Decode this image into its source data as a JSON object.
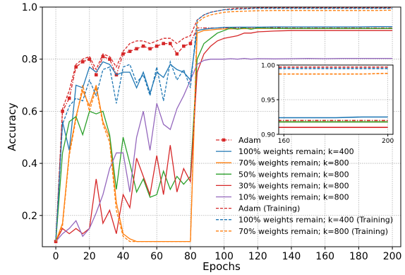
{
  "chart_data": {
    "type": "line",
    "title": "",
    "xlabel": "Epochs",
    "ylabel": "Accuracy",
    "xlim": [
      -8,
      205
    ],
    "ylim": [
      0.08,
      1.0
    ],
    "xticks": [
      0,
      20,
      40,
      60,
      80,
      100,
      120,
      140,
      160,
      180,
      200
    ],
    "yticks": [
      0.2,
      0.4,
      0.6,
      0.8,
      1.0
    ],
    "ytick_labels": [
      "0.2",
      "0.4",
      "0.6",
      "0.8",
      "1.0"
    ],
    "grid": true,
    "legend_position": "lower-right",
    "series": [
      {
        "name": "Adam",
        "color": "#d62728",
        "style": "dashdot",
        "marker": "square",
        "x": [
          0,
          4,
          8,
          12,
          16,
          20,
          24,
          28,
          32,
          36,
          40,
          44,
          48,
          52,
          56,
          60,
          64,
          68,
          72,
          76,
          80,
          84,
          88,
          92,
          96,
          100,
          104,
          108,
          112,
          116,
          120,
          124,
          128,
          132,
          136,
          140,
          144,
          148,
          152,
          156,
          160,
          164,
          168,
          172,
          176,
          180,
          184,
          188,
          192,
          196,
          200
        ],
        "y": [
          0.1,
          0.6,
          0.65,
          0.77,
          0.79,
          0.8,
          0.74,
          0.81,
          0.8,
          0.74,
          0.82,
          0.83,
          0.84,
          0.85,
          0.84,
          0.85,
          0.86,
          0.86,
          0.82,
          0.85,
          0.86,
          0.92,
          0.92,
          0.92,
          0.92,
          0.92,
          0.92,
          0.92,
          0.921,
          0.922,
          0.92,
          0.922,
          0.921,
          0.921,
          0.92,
          0.92,
          0.92,
          0.92,
          0.92,
          0.92,
          0.92,
          0.92,
          0.92,
          0.92,
          0.92,
          0.92,
          0.92,
          0.92,
          0.92,
          0.92,
          0.92
        ]
      },
      {
        "name": "100% weights remain; k=400",
        "color": "#1f77b4",
        "style": "solid",
        "x": [
          0,
          4,
          8,
          12,
          16,
          20,
          24,
          28,
          32,
          36,
          40,
          44,
          48,
          52,
          56,
          60,
          64,
          68,
          72,
          76,
          80,
          84,
          88,
          92,
          96,
          100,
          110,
          120,
          130,
          140,
          150,
          160,
          170,
          180,
          190,
          200
        ],
        "y": [
          0.1,
          0.56,
          0.45,
          0.7,
          0.69,
          0.77,
          0.75,
          0.79,
          0.78,
          0.74,
          0.75,
          0.75,
          0.69,
          0.75,
          0.67,
          0.75,
          0.73,
          0.78,
          0.76,
          0.75,
          0.72,
          0.91,
          0.915,
          0.918,
          0.92,
          0.922,
          0.923,
          0.923,
          0.924,
          0.924,
          0.924,
          0.924,
          0.924,
          0.924,
          0.925,
          0.925
        ]
      },
      {
        "name": "70% weights remain; k=800",
        "color": "#ff7f0e",
        "style": "solid",
        "x": [
          0,
          4,
          8,
          12,
          16,
          20,
          24,
          28,
          32,
          36,
          40,
          44,
          48,
          52,
          56,
          60,
          64,
          68,
          72,
          76,
          80,
          84,
          88,
          92,
          96,
          100,
          110,
          120,
          130,
          140,
          150,
          160,
          170,
          180,
          190,
          200
        ],
        "y": [
          0.1,
          0.17,
          0.44,
          0.58,
          0.68,
          0.62,
          0.7,
          0.56,
          0.5,
          0.25,
          0.13,
          0.11,
          0.1,
          0.1,
          0.1,
          0.1,
          0.1,
          0.1,
          0.1,
          0.1,
          0.1,
          0.9,
          0.91,
          0.912,
          0.915,
          0.916,
          0.917,
          0.918,
          0.918,
          0.918,
          0.918,
          0.918,
          0.918,
          0.918,
          0.918,
          0.918
        ]
      },
      {
        "name": "50% weights remain; k=800",
        "color": "#2ca02c",
        "style": "solid",
        "x": [
          0,
          4,
          8,
          12,
          16,
          20,
          24,
          28,
          32,
          36,
          40,
          44,
          48,
          52,
          56,
          60,
          64,
          68,
          72,
          76,
          80,
          84,
          88,
          92,
          96,
          100,
          104,
          108,
          112,
          116,
          120,
          130,
          140,
          150,
          160,
          170,
          180,
          190,
          200
        ],
        "y": [
          0.1,
          0.44,
          0.56,
          0.58,
          0.51,
          0.6,
          0.59,
          0.6,
          0.51,
          0.3,
          0.5,
          0.4,
          0.29,
          0.34,
          0.27,
          0.28,
          0.37,
          0.3,
          0.35,
          0.32,
          0.35,
          0.8,
          0.86,
          0.88,
          0.9,
          0.91,
          0.92,
          0.915,
          0.92,
          0.915,
          0.92,
          0.918,
          0.918,
          0.918,
          0.918,
          0.918,
          0.918,
          0.918,
          0.918
        ]
      },
      {
        "name": "30% weights remain; k=800",
        "color": "#d62728",
        "style": "solid",
        "x": [
          0,
          4,
          8,
          12,
          16,
          20,
          24,
          28,
          32,
          36,
          40,
          44,
          48,
          52,
          56,
          60,
          64,
          68,
          72,
          76,
          80,
          84,
          88,
          92,
          96,
          100,
          104,
          108,
          112,
          116,
          120,
          130,
          140,
          150,
          160,
          170,
          180,
          190,
          200
        ],
        "y": [
          0.1,
          0.15,
          0.13,
          0.15,
          0.13,
          0.15,
          0.34,
          0.17,
          0.22,
          0.13,
          0.28,
          0.23,
          0.42,
          0.35,
          0.28,
          0.43,
          0.28,
          0.47,
          0.29,
          0.38,
          0.33,
          0.75,
          0.82,
          0.85,
          0.87,
          0.88,
          0.885,
          0.89,
          0.9,
          0.9,
          0.905,
          0.908,
          0.91,
          0.91,
          0.91,
          0.91,
          0.91,
          0.91,
          0.91
        ]
      },
      {
        "name": "10% weights remain; k=800",
        "color": "#9467bd",
        "style": "solid",
        "x": [
          0,
          4,
          8,
          12,
          16,
          20,
          24,
          28,
          32,
          36,
          40,
          44,
          48,
          52,
          56,
          60,
          64,
          68,
          72,
          76,
          80,
          84,
          88,
          92,
          96,
          100,
          104,
          108,
          112,
          116,
          120,
          130,
          140,
          150,
          160,
          170,
          180,
          190,
          200
        ],
        "y": [
          0.1,
          0.13,
          0.15,
          0.18,
          0.12,
          0.15,
          0.21,
          0.28,
          0.38,
          0.44,
          0.44,
          0.29,
          0.5,
          0.6,
          0.45,
          0.63,
          0.55,
          0.53,
          0.61,
          0.66,
          0.72,
          0.78,
          0.795,
          0.8,
          0.8,
          0.8,
          0.802,
          0.8,
          0.803,
          0.8,
          0.802,
          0.801,
          0.802,
          0.803,
          0.802,
          0.803,
          0.803,
          0.803,
          0.803
        ]
      },
      {
        "name": "Adam (Training)",
        "color": "#d62728",
        "style": "dashed",
        "x": [
          0,
          4,
          8,
          12,
          16,
          20,
          24,
          28,
          32,
          36,
          40,
          44,
          48,
          52,
          56,
          60,
          64,
          68,
          72,
          76,
          80,
          84,
          88,
          92,
          96,
          100,
          104,
          108,
          112,
          116,
          120,
          130,
          140,
          150,
          160,
          170,
          180,
          190,
          200
        ],
        "y": [
          0.1,
          0.61,
          0.68,
          0.78,
          0.8,
          0.81,
          0.76,
          0.82,
          0.81,
          0.77,
          0.83,
          0.86,
          0.87,
          0.87,
          0.86,
          0.87,
          0.88,
          0.88,
          0.86,
          0.88,
          0.89,
          0.95,
          0.97,
          0.98,
          0.985,
          0.99,
          0.993,
          0.995,
          0.995,
          0.996,
          0.997,
          0.997,
          0.997,
          0.997,
          0.997,
          0.997,
          0.997,
          0.997,
          0.997
        ]
      },
      {
        "name": "100% weights remain; k=400 (Training)",
        "color": "#1f77b4",
        "style": "dashed",
        "x": [
          0,
          4,
          8,
          12,
          16,
          20,
          24,
          28,
          32,
          36,
          40,
          44,
          48,
          52,
          56,
          60,
          64,
          68,
          72,
          76,
          80,
          84,
          88,
          92,
          96,
          100,
          104,
          108,
          112,
          116,
          120,
          130,
          140,
          150,
          160,
          170,
          180,
          190,
          200
        ],
        "y": [
          0.1,
          0.55,
          0.62,
          0.65,
          0.64,
          0.72,
          0.66,
          0.76,
          0.77,
          0.63,
          0.77,
          0.78,
          0.71,
          0.74,
          0.66,
          0.77,
          0.64,
          0.79,
          0.72,
          0.76,
          0.69,
          0.95,
          0.97,
          0.98,
          0.985,
          0.99,
          0.99,
          0.992,
          0.993,
          0.994,
          0.995,
          0.995,
          0.995,
          0.995,
          0.995,
          0.995,
          0.995,
          0.995,
          0.995
        ]
      },
      {
        "name": "70% weights remain; k=800 (Training)",
        "color": "#ff7f0e",
        "style": "dashed",
        "x": [
          0,
          4,
          8,
          12,
          16,
          20,
          24,
          28,
          32,
          36,
          40,
          44,
          48,
          52,
          56,
          60,
          64,
          68,
          72,
          76,
          80,
          84,
          88,
          92,
          96,
          100,
          104,
          108,
          112,
          116,
          120,
          130,
          140,
          150,
          160,
          170,
          180,
          190,
          200
        ],
        "y": [
          0.1,
          0.16,
          0.43,
          0.57,
          0.7,
          0.6,
          0.69,
          0.55,
          0.48,
          0.22,
          0.12,
          0.1,
          0.1,
          0.1,
          0.1,
          0.1,
          0.1,
          0.1,
          0.1,
          0.1,
          0.1,
          0.94,
          0.96,
          0.97,
          0.975,
          0.98,
          0.982,
          0.983,
          0.984,
          0.985,
          0.986,
          0.987,
          0.987,
          0.987,
          0.987,
          0.987,
          0.987,
          0.987,
          0.988
        ]
      }
    ],
    "inset": {
      "xlim": [
        158,
        202
      ],
      "ylim": [
        0.9,
        1.0
      ],
      "xticks": [
        160,
        200
      ],
      "yticks": [
        0.9,
        0.95,
        1.0
      ],
      "ytick_labels": [
        "0.90",
        "0.95",
        "1.00"
      ]
    }
  }
}
